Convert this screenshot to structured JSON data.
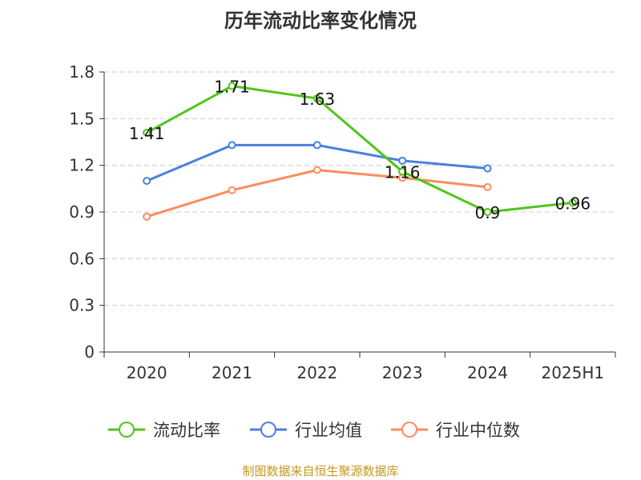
{
  "chart_data": {
    "type": "line",
    "title": "历年流动比率变化情况",
    "categories": [
      "2020",
      "2021",
      "2022",
      "2023",
      "2024",
      "2025H1"
    ],
    "ylim": [
      0,
      1.8
    ],
    "yticks": [
      "0",
      "0.3",
      "0.6",
      "0.9",
      "1.2",
      "1.5",
      "1.8"
    ],
    "grid": true,
    "legend_position": "bottom",
    "series": [
      {
        "name": "流动比率",
        "color": "#52c41a",
        "values": [
          1.41,
          1.71,
          1.63,
          1.16,
          0.9,
          0.96
        ],
        "labels": [
          "1.41",
          "1.71",
          "1.63",
          "1.16",
          "0.9",
          "0.96"
        ]
      },
      {
        "name": "行业均值",
        "color": "#4a7fe0",
        "values": [
          1.1,
          1.33,
          1.33,
          1.23,
          1.18,
          null
        ]
      },
      {
        "name": "行业中位数",
        "color": "#ff8c5a",
        "values": [
          0.87,
          1.04,
          1.17,
          1.12,
          1.06,
          null
        ]
      }
    ]
  },
  "source": "制图数据来自恒生聚源数据库"
}
